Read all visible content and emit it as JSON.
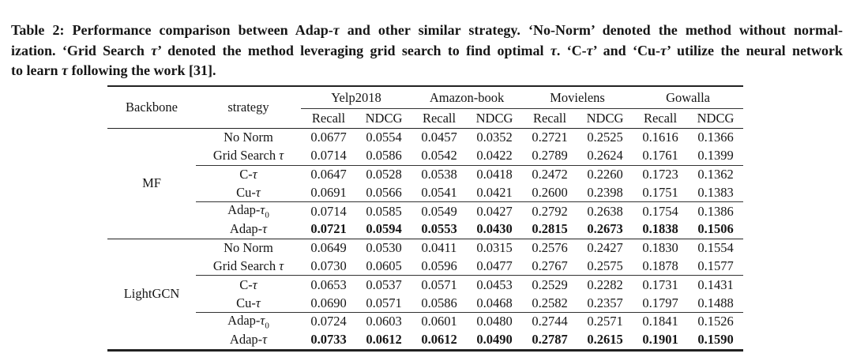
{
  "caption": {
    "lines": [
      "Table 2: Performance comparison between Adap-τ and other similar strategy. ‘No-Norm’ denoted the method without normal-",
      "ization. ‘Grid Search τ’ denoted the method leveraging grid search to find optimal τ. ‘C-τ’ and ‘Cu-τ’ utilize the neural network",
      "to learn τ following the work [31]."
    ]
  },
  "table": {
    "col_headers": {
      "backbone": "Backbone",
      "strategy": "strategy",
      "datasets": [
        "Yelp2018",
        "Amazon-book",
        "Movielens",
        "Gowalla"
      ],
      "metrics": [
        "Recall",
        "NDCG"
      ]
    },
    "sections": [
      {
        "backbone": "MF",
        "groups": [
          {
            "rows": [
              {
                "strategy": "No Norm",
                "bold": false,
                "values": [
                  "0.0677",
                  "0.0554",
                  "0.0457",
                  "0.0352",
                  "0.2721",
                  "0.2525",
                  "0.1616",
                  "0.1366"
                ]
              },
              {
                "strategy": "Grid Search τ",
                "bold": false,
                "values": [
                  "0.0714",
                  "0.0586",
                  "0.0542",
                  "0.0422",
                  "0.2789",
                  "0.2624",
                  "0.1761",
                  "0.1399"
                ]
              }
            ]
          },
          {
            "rows": [
              {
                "strategy": "C-τ",
                "bold": false,
                "values": [
                  "0.0647",
                  "0.0528",
                  "0.0538",
                  "0.0418",
                  "0.2472",
                  "0.2260",
                  "0.1723",
                  "0.1362"
                ]
              },
              {
                "strategy": "Cu-τ",
                "bold": false,
                "values": [
                  "0.0691",
                  "0.0566",
                  "0.0541",
                  "0.0421",
                  "0.2600",
                  "0.2398",
                  "0.1751",
                  "0.1383"
                ]
              }
            ]
          },
          {
            "rows": [
              {
                "strategy": "Adap-τ₀",
                "bold": false,
                "values": [
                  "0.0714",
                  "0.0585",
                  "0.0549",
                  "0.0427",
                  "0.2792",
                  "0.2638",
                  "0.1754",
                  "0.1386"
                ]
              },
              {
                "strategy": "Adap-τ",
                "bold": true,
                "values": [
                  "0.0721",
                  "0.0594",
                  "0.0553",
                  "0.0430",
                  "0.2815",
                  "0.2673",
                  "0.1838",
                  "0.1506"
                ]
              }
            ]
          }
        ]
      },
      {
        "backbone": "LightGCN",
        "groups": [
          {
            "rows": [
              {
                "strategy": "No Norm",
                "bold": false,
                "values": [
                  "0.0649",
                  "0.0530",
                  "0.0411",
                  "0.0315",
                  "0.2576",
                  "0.2427",
                  "0.1830",
                  "0.1554"
                ]
              },
              {
                "strategy": "Grid Search τ",
                "bold": false,
                "values": [
                  "0.0730",
                  "0.0605",
                  "0.0596",
                  "0.0477",
                  "0.2767",
                  "0.2575",
                  "0.1878",
                  "0.1577"
                ]
              }
            ]
          },
          {
            "rows": [
              {
                "strategy": "C-τ",
                "bold": false,
                "values": [
                  "0.0653",
                  "0.0537",
                  "0.0571",
                  "0.0453",
                  "0.2529",
                  "0.2282",
                  "0.1731",
                  "0.1431"
                ]
              },
              {
                "strategy": "Cu-τ",
                "bold": false,
                "values": [
                  "0.0690",
                  "0.0571",
                  "0.0586",
                  "0.0468",
                  "0.2582",
                  "0.2357",
                  "0.1797",
                  "0.1488"
                ]
              }
            ]
          },
          {
            "rows": [
              {
                "strategy": "Adap-τ₀",
                "bold": false,
                "values": [
                  "0.0724",
                  "0.0603",
                  "0.0601",
                  "0.0480",
                  "0.2744",
                  "0.2571",
                  "0.1841",
                  "0.1526"
                ]
              },
              {
                "strategy": "Adap-τ",
                "bold": true,
                "values": [
                  "0.0733",
                  "0.0612",
                  "0.0612",
                  "0.0490",
                  "0.2787",
                  "0.2615",
                  "0.1901",
                  "0.1590"
                ]
              }
            ]
          }
        ]
      }
    ]
  }
}
